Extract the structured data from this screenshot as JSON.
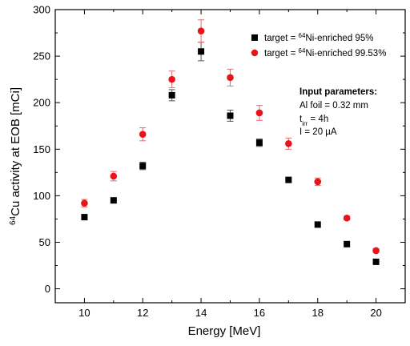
{
  "chart_data": {
    "type": "scatter",
    "xlabel": "Energy [MeV]",
    "ylabel_prefix": "64",
    "ylabel_main": "Cu activity at EOB [mCi]",
    "xlim": [
      9,
      21
    ],
    "ylim": [
      -15,
      300
    ],
    "xticks": [
      10,
      12,
      14,
      16,
      18,
      20
    ],
    "yticks": [
      0,
      50,
      100,
      150,
      200,
      250,
      300
    ],
    "grid": false,
    "legend_position": "top-right",
    "series": [
      {
        "name_prefix": "target = ",
        "name_sup": "64",
        "name_suffix": "Ni-enriched 95%",
        "marker": "square",
        "color": "#000000",
        "points": [
          {
            "x": 10,
            "y": 77,
            "err": 0
          },
          {
            "x": 11,
            "y": 95,
            "err": 0
          },
          {
            "x": 12,
            "y": 132,
            "err": 4
          },
          {
            "x": 13,
            "y": 208,
            "err": 6
          },
          {
            "x": 14,
            "y": 255,
            "err": 10
          },
          {
            "x": 15,
            "y": 186,
            "err": 6
          },
          {
            "x": 16,
            "y": 157,
            "err": 4
          },
          {
            "x": 17,
            "y": 117,
            "err": 0
          },
          {
            "x": 18,
            "y": 69,
            "err": 0
          },
          {
            "x": 19,
            "y": 48,
            "err": 0
          },
          {
            "x": 20,
            "y": 29,
            "err": 0
          }
        ]
      },
      {
        "name_prefix": "target = ",
        "name_sup": "64",
        "name_suffix": "Ni-enriched 99.53%",
        "marker": "circle",
        "color": "#e8141b",
        "points": [
          {
            "x": 10,
            "y": 92,
            "err": 4
          },
          {
            "x": 11,
            "y": 121,
            "err": 5
          },
          {
            "x": 12,
            "y": 166,
            "err": 7
          },
          {
            "x": 13,
            "y": 225,
            "err": 9
          },
          {
            "x": 14,
            "y": 277,
            "err": 12
          },
          {
            "x": 15,
            "y": 227,
            "err": 9
          },
          {
            "x": 16,
            "y": 189,
            "err": 8
          },
          {
            "x": 17,
            "y": 156,
            "err": 6
          },
          {
            "x": 18,
            "y": 115,
            "err": 4
          },
          {
            "x": 19,
            "y": 76,
            "err": 2
          },
          {
            "x": 20,
            "y": 41,
            "err": 2
          }
        ]
      }
    ],
    "annotation": {
      "title": "Input parameters:",
      "line1": "Al foil = 0.32 mm",
      "line2_main": "t",
      "line2_sub": "irr",
      "line2_rest": " = 4h",
      "line3": "I = 20 µA"
    }
  }
}
